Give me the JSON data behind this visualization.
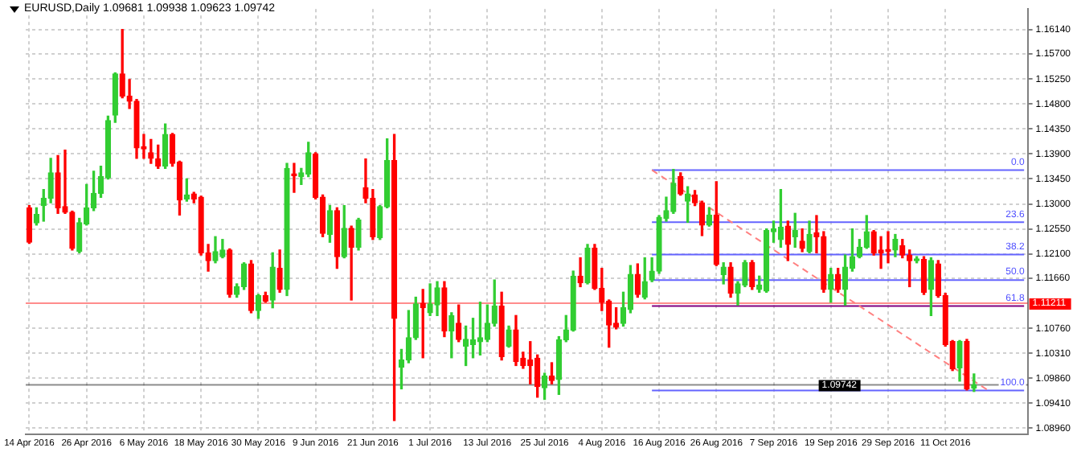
{
  "chart_data": {
    "type": "candlestick",
    "title": "EURUSD,Daily  1.09681 1.09938 1.09623 1.09742",
    "categories": [
      "14 Apr 2016",
      null,
      null,
      null,
      null,
      null,
      null,
      null,
      "26 Apr 2016",
      null,
      null,
      null,
      null,
      null,
      null,
      null,
      "6 May 2016",
      null,
      null,
      null,
      null,
      null,
      null,
      null,
      "18 May 2016",
      null,
      null,
      null,
      null,
      null,
      null,
      null,
      "30 May 2016",
      null,
      null,
      null,
      null,
      null,
      null,
      null,
      "9 Jun 2016",
      null,
      null,
      null,
      null,
      null,
      null,
      null,
      "21 Jun 2016",
      null,
      null,
      null,
      null,
      null,
      null,
      null,
      "1 Jul 2016",
      null,
      null,
      null,
      null,
      null,
      null,
      null,
      "13 Jul 2016",
      null,
      null,
      null,
      null,
      null,
      null,
      null,
      "25 Jul 2016",
      null,
      null,
      null,
      null,
      null,
      null,
      null,
      "4 Aug 2016",
      null,
      null,
      null,
      null,
      null,
      null,
      null,
      "16 Aug 2016",
      null,
      null,
      null,
      null,
      null,
      null,
      null,
      "26 Aug 2016",
      null,
      null,
      null,
      null,
      null,
      null,
      null,
      "7 Sep 2016",
      null,
      null,
      null,
      null,
      null,
      null,
      null,
      "19 Sep 2016",
      null,
      null,
      null,
      null,
      null,
      null,
      null,
      "29 Sep 2016",
      null,
      null,
      null,
      null,
      null,
      null,
      null,
      "11 Oct 2016",
      null,
      null,
      null,
      null,
      null,
      null,
      null,
      null,
      null,
      null,
      null
    ],
    "ohlc": [
      [
        1.1293,
        1.1297,
        1.1229,
        1.1231
      ],
      [
        1.1266,
        1.1293,
        1.1262,
        1.1281
      ],
      [
        1.1297,
        1.1326,
        1.1269,
        1.131
      ],
      [
        1.131,
        1.1382,
        1.1302,
        1.1356
      ],
      [
        1.1356,
        1.1387,
        1.1283,
        1.1293
      ],
      [
        1.1295,
        1.1397,
        1.1283,
        1.1285
      ],
      [
        1.1285,
        1.1287,
        1.1217,
        1.122
      ],
      [
        1.1215,
        1.1274,
        1.1212,
        1.1266
      ],
      [
        1.1264,
        1.1335,
        1.1262,
        1.1293
      ],
      [
        1.1293,
        1.1359,
        1.1288,
        1.1319
      ],
      [
        1.1319,
        1.1368,
        1.1312,
        1.1349
      ],
      [
        1.1347,
        1.1458,
        1.1345,
        1.145
      ],
      [
        1.146,
        1.1536,
        1.1447,
        1.1534
      ],
      [
        1.1534,
        1.1614,
        1.1491,
        1.1494
      ],
      [
        1.1494,
        1.1524,
        1.1472,
        1.1485
      ],
      [
        1.1485,
        1.1488,
        1.1382,
        1.1401
      ],
      [
        1.1403,
        1.1425,
        1.1382,
        1.1399
      ],
      [
        1.1392,
        1.1416,
        1.1373,
        1.1382
      ],
      [
        1.1381,
        1.1406,
        1.1364,
        1.1368
      ],
      [
        1.1368,
        1.1444,
        1.1364,
        1.1425
      ],
      [
        1.1425,
        1.1427,
        1.1368,
        1.1373
      ],
      [
        1.1375,
        1.1377,
        1.128,
        1.1307
      ],
      [
        1.1309,
        1.1345,
        1.1305,
        1.1316
      ],
      [
        1.1318,
        1.1321,
        1.1302,
        1.1309
      ],
      [
        1.1312,
        1.1314,
        1.1208,
        1.1212
      ],
      [
        1.1212,
        1.1227,
        1.1179,
        1.1198
      ],
      [
        1.1198,
        1.1241,
        1.1194,
        1.1214
      ],
      [
        1.1205,
        1.1236,
        1.1203,
        1.1217
      ],
      [
        1.1217,
        1.1219,
        1.1132,
        1.1137
      ],
      [
        1.1137,
        1.1156,
        1.1132,
        1.1151
      ],
      [
        1.1151,
        1.1194,
        1.1146,
        1.1192
      ],
      [
        1.1192,
        1.1198,
        1.1104,
        1.1108
      ],
      [
        1.1108,
        1.1137,
        1.1094,
        1.1135
      ],
      [
        1.1135,
        1.1141,
        1.1123,
        1.1125
      ],
      [
        1.1127,
        1.1212,
        1.1113,
        1.1186
      ],
      [
        1.1184,
        1.1217,
        1.1141,
        1.1146
      ],
      [
        1.1146,
        1.1373,
        1.1135,
        1.1364
      ],
      [
        1.1354,
        1.1373,
        1.1321,
        1.1351
      ],
      [
        1.1349,
        1.1364,
        1.1335,
        1.1356
      ],
      [
        1.1354,
        1.1411,
        1.1349,
        1.1392
      ],
      [
        1.139,
        1.1392,
        1.1309,
        1.1312
      ],
      [
        1.1312,
        1.1316,
        1.1241,
        1.1247
      ],
      [
        1.1245,
        1.1297,
        1.1231,
        1.1288
      ],
      [
        1.1288,
        1.1293,
        1.1184,
        1.1205
      ],
      [
        1.1205,
        1.1297,
        1.1203,
        1.1256
      ],
      [
        1.1256,
        1.126,
        1.1127,
        1.1222
      ],
      [
        1.1222,
        1.1274,
        1.1217,
        1.1271
      ],
      [
        1.1329,
        1.1381,
        1.1302,
        1.131
      ],
      [
        1.131,
        1.1326,
        1.1236,
        1.1241
      ],
      [
        1.1239,
        1.1297,
        1.1236,
        1.1295
      ],
      [
        1.1295,
        1.1417,
        1.1293,
        1.1378
      ],
      [
        1.1378,
        1.1425,
        1.091,
        1.1094
      ],
      [
        1.1006,
        1.1038,
        1.0967,
        1.1019
      ],
      [
        1.1019,
        1.1108,
        1.1014,
        1.1059
      ],
      [
        1.1059,
        1.1132,
        1.1056,
        1.112
      ],
      [
        1.1121,
        1.1146,
        1.1023,
        1.1113
      ],
      [
        1.1104,
        1.1156,
        1.1099,
        1.112
      ],
      [
        1.1118,
        1.116,
        1.1099,
        1.1149
      ],
      [
        1.1149,
        1.116,
        1.1061,
        1.1071
      ],
      [
        1.1071,
        1.1104,
        1.1023,
        1.1099
      ],
      [
        1.1085,
        1.1118,
        1.1052,
        1.1056
      ],
      [
        1.1044,
        1.108,
        1.1009,
        1.1056
      ],
      [
        1.1047,
        1.1094,
        1.1023,
        1.1055
      ],
      [
        1.1052,
        1.1123,
        1.1028,
        1.1059
      ],
      [
        1.1056,
        1.1118,
        1.1052,
        1.1085
      ],
      [
        1.1085,
        1.1163,
        1.108,
        1.1116
      ],
      [
        1.1116,
        1.1141,
        1.1019,
        1.1025
      ],
      [
        1.1044,
        1.108,
        1.1042,
        1.1073
      ],
      [
        1.1073,
        1.1099,
        1.1009,
        1.1016
      ],
      [
        1.1022,
        1.1033,
        1.1004,
        1.1009
      ],
      [
        1.1019,
        1.1052,
        1.0976,
        1.1009
      ],
      [
        1.1022,
        1.1028,
        1.0952,
        1.0971
      ],
      [
        1.0969,
        1.0995,
        1.0948,
        1.099
      ],
      [
        1.099,
        1.1014,
        1.0976,
        1.0982
      ],
      [
        1.0984,
        1.1061,
        1.0957,
        1.1055
      ],
      [
        1.1055,
        1.1099,
        1.1052,
        1.1073
      ],
      [
        1.1073,
        1.1179,
        1.1071,
        1.117
      ],
      [
        1.117,
        1.1203,
        1.1151,
        1.1158
      ],
      [
        1.1158,
        1.1227,
        1.1156,
        1.122
      ],
      [
        1.122,
        1.1227,
        1.1146,
        1.1148
      ],
      [
        1.1148,
        1.1184,
        1.1108,
        1.1123
      ],
      [
        1.1125,
        1.1127,
        1.1042,
        1.1082
      ],
      [
        1.1085,
        1.1113,
        1.1075,
        1.1078
      ],
      [
        1.1085,
        1.1141,
        1.108,
        1.1113
      ],
      [
        1.111,
        1.1189,
        1.1104,
        1.1173
      ],
      [
        1.1173,
        1.1192,
        1.1132,
        1.1137
      ],
      [
        1.1132,
        1.1203,
        1.1129,
        1.116
      ],
      [
        1.1163,
        1.1203,
        1.116,
        1.1179
      ],
      [
        1.1179,
        1.1279,
        1.1175,
        1.1276
      ],
      [
        1.1274,
        1.1312,
        1.1269,
        1.1288
      ],
      [
        1.1286,
        1.1362,
        1.1283,
        1.1337
      ],
      [
        1.1349,
        1.1356,
        1.1316,
        1.1318
      ],
      [
        1.1305,
        1.1331,
        1.1267,
        1.1318
      ],
      [
        1.1316,
        1.1324,
        1.1297,
        1.1302
      ],
      [
        1.1302,
        1.1305,
        1.1243,
        1.1262
      ],
      [
        1.1262,
        1.1293,
        1.126,
        1.128
      ],
      [
        1.128,
        1.134,
        1.1189,
        1.1191
      ],
      [
        1.1173,
        1.1194,
        1.1156,
        1.1186
      ],
      [
        1.1186,
        1.1194,
        1.1132,
        1.1139
      ],
      [
        1.1139,
        1.116,
        1.1118,
        1.1156
      ],
      [
        1.1154,
        1.1198,
        1.1151,
        1.1194
      ],
      [
        1.1194,
        1.1198,
        1.1146,
        1.1151
      ],
      [
        1.1146,
        1.117,
        1.1141,
        1.1154
      ],
      [
        1.1143,
        1.1255,
        1.1141,
        1.1252
      ],
      [
        1.125,
        1.1269,
        1.1231,
        1.1255
      ],
      [
        1.1236,
        1.1326,
        1.1222,
        1.1258
      ],
      [
        1.126,
        1.1269,
        1.1198,
        1.1227
      ],
      [
        1.1241,
        1.1283,
        1.1222,
        1.1252
      ],
      [
        1.1233,
        1.1255,
        1.1214,
        1.122
      ],
      [
        1.1214,
        1.1269,
        1.1212,
        1.1245
      ],
      [
        1.1248,
        1.1279,
        1.1212,
        1.1241
      ],
      [
        1.1241,
        1.125,
        1.1141,
        1.1146
      ],
      [
        1.1146,
        1.1184,
        1.1123,
        1.1173
      ],
      [
        1.1173,
        1.1184,
        1.1141,
        1.1146
      ],
      [
        1.1146,
        1.1208,
        1.1118,
        1.1186
      ],
      [
        1.1184,
        1.1255,
        1.1179,
        1.1205
      ],
      [
        1.1205,
        1.1236,
        1.1203,
        1.1222
      ],
      [
        1.1222,
        1.1279,
        1.122,
        1.125
      ],
      [
        1.125,
        1.1252,
        1.1208,
        1.1212
      ],
      [
        1.1217,
        1.1241,
        1.1184,
        1.1212
      ],
      [
        1.1217,
        1.125,
        1.1194,
        1.1215
      ],
      [
        1.1217,
        1.1245,
        1.1205,
        1.1236
      ],
      [
        1.1225,
        1.1236,
        1.1203,
        1.1208
      ],
      [
        1.1208,
        1.1217,
        1.1151,
        1.1198
      ],
      [
        1.1198,
        1.1205,
        1.1194,
        1.1201
      ],
      [
        1.12,
        1.1205,
        1.1137,
        1.1141
      ],
      [
        1.1146,
        1.1203,
        1.1099,
        1.1198
      ],
      [
        1.1192,
        1.1198,
        1.1132,
        1.1135
      ],
      [
        1.1135,
        1.1139,
        1.1044,
        1.1047
      ],
      [
        1.1052,
        1.1054,
        1.1,
        1.1003
      ],
      [
        1.1005,
        1.1054,
        1.0981,
        1.1052
      ],
      [
        1.1052,
        1.1056,
        1.0965,
        1.0967
      ],
      [
        1.09681,
        1.09938,
        1.09623,
        1.09742
      ],
      null,
      null,
      null,
      null,
      null,
      null,
      null
    ],
    "colors": [
      "#ff0000",
      "#32cd32",
      "#32cd32",
      "#32cd32",
      "#ff0000",
      "#ff0000",
      "#ff0000",
      "#32cd32",
      "#32cd32",
      "#32cd32",
      "#32cd32",
      "#32cd32",
      "#32cd32",
      "#ff0000",
      "#ff0000",
      "#ff0000",
      "#ff0000",
      "#ff0000",
      "#ff0000",
      "#32cd32",
      "#ff0000",
      "#ff0000",
      "#32cd32",
      "#ff0000",
      "#ff0000",
      "#ff0000",
      "#32cd32",
      "#32cd32",
      "#ff0000",
      "#32cd32",
      "#32cd32",
      "#ff0000",
      "#32cd32",
      "#ff0000",
      "#32cd32",
      "#ff0000",
      "#32cd32",
      "#ff0000",
      "#32cd32",
      "#32cd32",
      "#ff0000",
      "#ff0000",
      "#32cd32",
      "#ff0000",
      "#32cd32",
      "#ff0000",
      "#32cd32",
      "#ff0000",
      "#ff0000",
      "#32cd32",
      "#32cd32",
      "#ff0000",
      "#32cd32",
      "#32cd32",
      "#32cd32",
      "#ff0000",
      "#32cd32",
      "#32cd32",
      "#ff0000",
      "#32cd32",
      "#ff0000",
      "#32cd32",
      "#32cd32",
      "#32cd32",
      "#32cd32",
      "#32cd32",
      "#ff0000",
      "#32cd32",
      "#ff0000",
      "#ff0000",
      "#ff0000",
      "#ff0000",
      "#32cd32",
      "#ff0000",
      "#32cd32",
      "#32cd32",
      "#32cd32",
      "#ff0000",
      "#32cd32",
      "#ff0000",
      "#ff0000",
      "#ff0000",
      "#ff0000",
      "#32cd32",
      "#32cd32",
      "#ff0000",
      "#32cd32",
      "#32cd32",
      "#32cd32",
      "#32cd32",
      "#32cd32",
      "#ff0000",
      "#32cd32",
      "#ff0000",
      "#ff0000",
      "#32cd32",
      "#ff0000",
      "#32cd32",
      "#ff0000",
      "#32cd32",
      "#32cd32",
      "#ff0000",
      "#32cd32",
      "#32cd32",
      "#32cd32",
      "#32cd32",
      "#ff0000",
      "#32cd32",
      "#ff0000",
      "#32cd32",
      "#ff0000",
      "#ff0000",
      "#32cd32",
      "#ff0000",
      "#32cd32",
      "#32cd32",
      "#32cd32",
      "#32cd32",
      "#ff0000",
      "#ff0000",
      "#ff0000",
      "#32cd32",
      "#ff0000",
      "#ff0000",
      "#32cd32",
      "#ff0000",
      "#32cd32",
      "#ff0000",
      "#ff0000",
      "#ff0000",
      "#32cd32",
      "#ff0000",
      "#32cd32",
      null,
      null,
      null,
      null,
      null,
      null,
      null
    ],
    "series": [
      {
        "type": "line",
        "color": "#ff8080",
        "line_style": "dashed",
        "values": [
          null,
          null,
          null,
          null,
          null,
          null,
          null,
          null,
          null,
          null,
          null,
          null,
          null,
          null,
          null,
          null,
          null,
          null,
          null,
          null,
          null,
          null,
          null,
          null,
          null,
          null,
          null,
          null,
          null,
          null,
          null,
          null,
          null,
          null,
          null,
          null,
          null,
          null,
          null,
          null,
          null,
          null,
          null,
          null,
          null,
          null,
          null,
          null,
          null,
          null,
          null,
          null,
          null,
          null,
          null,
          null,
          null,
          null,
          null,
          null,
          null,
          null,
          null,
          null,
          null,
          null,
          null,
          null,
          null,
          null,
          null,
          null,
          null,
          null,
          null,
          null,
          null,
          null,
          null,
          null,
          null,
          null,
          null,
          null,
          null,
          null,
          null,
          1.1361,
          null,
          null,
          null,
          null,
          null,
          null,
          null,
          null,
          null,
          null,
          null,
          null,
          null,
          null,
          null,
          null,
          null,
          null,
          null,
          null,
          null,
          null,
          null,
          null,
          null,
          null,
          null,
          null,
          null,
          null,
          null,
          null,
          null,
          null,
          null,
          null,
          null,
          null,
          null,
          null,
          null,
          null,
          null,
          null,
          null,
          null,
          1.0964,
          null,
          null,
          null,
          null,
          null
        ]
      },
      {
        "type": "line",
        "color": "#6464ff",
        "values": [
          null,
          null,
          null,
          null,
          null,
          null,
          null,
          null,
          null,
          null,
          null,
          null,
          null,
          null,
          null,
          null,
          null,
          null,
          null,
          null,
          null,
          null,
          null,
          null,
          null,
          null,
          null,
          null,
          null,
          null,
          null,
          null,
          null,
          null,
          null,
          null,
          null,
          null,
          null,
          null,
          null,
          null,
          null,
          null,
          null,
          null,
          null,
          null,
          null,
          null,
          null,
          null,
          null,
          null,
          null,
          null,
          null,
          null,
          null,
          null,
          null,
          null,
          null,
          null,
          null,
          null,
          null,
          null,
          null,
          null,
          null,
          null,
          null,
          null,
          null,
          null,
          null,
          null,
          null,
          null,
          null,
          null,
          null,
          null,
          null,
          null,
          null,
          1.1361,
          null,
          null,
          null,
          null,
          null,
          null,
          null,
          null,
          null,
          null,
          null,
          null,
          null,
          null,
          null,
          null,
          null,
          null,
          null,
          null,
          null,
          null,
          null,
          null,
          null,
          null,
          null,
          null,
          null,
          null,
          null,
          null,
          null,
          null,
          null,
          null,
          null,
          null,
          null,
          null,
          null,
          null,
          null,
          null,
          null,
          null,
          null,
          null,
          null,
          null,
          null,
          1.1361
        ]
      },
      {
        "type": "line",
        "color": "#6464ff",
        "values": [
          null,
          null,
          null,
          null,
          null,
          null,
          null,
          null,
          null,
          null,
          null,
          null,
          null,
          null,
          null,
          null,
          null,
          null,
          null,
          null,
          null,
          null,
          null,
          null,
          null,
          null,
          null,
          null,
          null,
          null,
          null,
          null,
          null,
          null,
          null,
          null,
          null,
          null,
          null,
          null,
          null,
          null,
          null,
          null,
          null,
          null,
          null,
          null,
          null,
          null,
          null,
          null,
          null,
          null,
          null,
          null,
          null,
          null,
          null,
          null,
          null,
          null,
          null,
          null,
          null,
          null,
          null,
          null,
          null,
          null,
          null,
          null,
          null,
          null,
          null,
          null,
          null,
          null,
          null,
          null,
          null,
          null,
          null,
          null,
          null,
          null,
          null,
          1.1267,
          null,
          null,
          null,
          null,
          null,
          null,
          null,
          null,
          null,
          null,
          null,
          null,
          null,
          null,
          null,
          null,
          null,
          null,
          null,
          null,
          null,
          null,
          null,
          null,
          null,
          null,
          null,
          null,
          null,
          null,
          null,
          null,
          null,
          null,
          null,
          null,
          null,
          null,
          null,
          null,
          null,
          null,
          null,
          null,
          null,
          null,
          null,
          null,
          null,
          null,
          null,
          1.1267
        ]
      },
      {
        "type": "line",
        "color": "#6464ff",
        "values": [
          null,
          null,
          null,
          null,
          null,
          null,
          null,
          null,
          null,
          null,
          null,
          null,
          null,
          null,
          null,
          null,
          null,
          null,
          null,
          null,
          null,
          null,
          null,
          null,
          null,
          null,
          null,
          null,
          null,
          null,
          null,
          null,
          null,
          null,
          null,
          null,
          null,
          null,
          null,
          null,
          null,
          null,
          null,
          null,
          null,
          null,
          null,
          null,
          null,
          null,
          null,
          null,
          null,
          null,
          null,
          null,
          null,
          null,
          null,
          null,
          null,
          null,
          null,
          null,
          null,
          null,
          null,
          null,
          null,
          null,
          null,
          null,
          null,
          null,
          null,
          null,
          null,
          null,
          null,
          null,
          null,
          null,
          null,
          null,
          null,
          null,
          null,
          1.1209,
          null,
          null,
          null,
          null,
          null,
          null,
          null,
          null,
          null,
          null,
          null,
          null,
          null,
          null,
          null,
          null,
          null,
          null,
          null,
          null,
          null,
          null,
          null,
          null,
          null,
          null,
          null,
          null,
          null,
          null,
          null,
          null,
          null,
          null,
          null,
          null,
          null,
          null,
          null,
          null,
          null,
          null,
          null,
          null,
          null,
          null,
          null,
          null,
          null,
          null,
          null,
          1.1209
        ]
      },
      {
        "type": "line",
        "color": "#6464ff",
        "values": [
          null,
          null,
          null,
          null,
          null,
          null,
          null,
          null,
          null,
          null,
          null,
          null,
          null,
          null,
          null,
          null,
          null,
          null,
          null,
          null,
          null,
          null,
          null,
          null,
          null,
          null,
          null,
          null,
          null,
          null,
          null,
          null,
          null,
          null,
          null,
          null,
          null,
          null,
          null,
          null,
          null,
          null,
          null,
          null,
          null,
          null,
          null,
          null,
          null,
          null,
          null,
          null,
          null,
          null,
          null,
          null,
          null,
          null,
          null,
          null,
          null,
          null,
          null,
          null,
          null,
          null,
          null,
          null,
          null,
          null,
          null,
          null,
          null,
          null,
          null,
          null,
          null,
          null,
          null,
          null,
          null,
          null,
          null,
          null,
          null,
          null,
          null,
          1.1163,
          null,
          null,
          null,
          null,
          null,
          null,
          null,
          null,
          null,
          null,
          null,
          null,
          null,
          null,
          null,
          null,
          null,
          null,
          null,
          null,
          null,
          null,
          null,
          null,
          null,
          null,
          null,
          null,
          null,
          null,
          null,
          null,
          null,
          null,
          null,
          null,
          null,
          null,
          null,
          null,
          null,
          null,
          null,
          null,
          null,
          null,
          null,
          null,
          null,
          null,
          null,
          1.1163
        ]
      },
      {
        "type": "line",
        "color": "#800080",
        "values": [
          null,
          null,
          null,
          null,
          null,
          null,
          null,
          null,
          null,
          null,
          null,
          null,
          null,
          null,
          null,
          null,
          null,
          null,
          null,
          null,
          null,
          null,
          null,
          null,
          null,
          null,
          null,
          null,
          null,
          null,
          null,
          null,
          null,
          null,
          null,
          null,
          null,
          null,
          null,
          null,
          null,
          null,
          null,
          null,
          null,
          null,
          null,
          null,
          null,
          null,
          null,
          null,
          null,
          null,
          null,
          null,
          null,
          null,
          null,
          null,
          null,
          null,
          null,
          null,
          null,
          null,
          null,
          null,
          null,
          null,
          null,
          null,
          null,
          null,
          null,
          null,
          null,
          null,
          null,
          null,
          null,
          null,
          null,
          null,
          null,
          null,
          null,
          1.1116,
          null,
          null,
          null,
          null,
          null,
          null,
          null,
          null,
          null,
          null,
          null,
          null,
          null,
          null,
          null,
          null,
          null,
          null,
          null,
          null,
          null,
          null,
          null,
          null,
          null,
          null,
          null,
          null,
          null,
          null,
          null,
          null,
          null,
          null,
          null,
          null,
          null,
          null,
          null,
          null,
          null,
          null,
          null,
          null,
          null,
          null,
          null,
          null,
          null,
          null,
          null,
          1.1116
        ]
      },
      {
        "type": "line",
        "color": "#6464ff",
        "values": [
          null,
          null,
          null,
          null,
          null,
          null,
          null,
          null,
          null,
          null,
          null,
          null,
          null,
          null,
          null,
          null,
          null,
          null,
          null,
          null,
          null,
          null,
          null,
          null,
          null,
          null,
          null,
          null,
          null,
          null,
          null,
          null,
          null,
          null,
          null,
          null,
          null,
          null,
          null,
          null,
          null,
          null,
          null,
          null,
          null,
          null,
          null,
          null,
          null,
          null,
          null,
          null,
          null,
          null,
          null,
          null,
          null,
          null,
          null,
          null,
          null,
          null,
          null,
          null,
          null,
          null,
          null,
          null,
          null,
          null,
          null,
          null,
          null,
          null,
          null,
          null,
          null,
          null,
          null,
          null,
          null,
          null,
          null,
          null,
          null,
          null,
          null,
          1.0964,
          null,
          null,
          null,
          null,
          null,
          null,
          null,
          null,
          null,
          null,
          null,
          null,
          null,
          null,
          null,
          null,
          null,
          null,
          null,
          null,
          null,
          null,
          null,
          null,
          null,
          null,
          null,
          null,
          null,
          null,
          null,
          null,
          null,
          null,
          null,
          null,
          null,
          null,
          null,
          null,
          null,
          null,
          null,
          null,
          null,
          null,
          null,
          null,
          null,
          null,
          null,
          1.0964
        ]
      }
    ],
    "annotations": [
      {
        "text": "0.0",
        "y": 1.1361
      },
      {
        "text": "23.6",
        "y": 1.1267
      },
      {
        "text": "38.2",
        "y": 1.1209
      },
      {
        "text": "50.0",
        "y": 1.1163
      },
      {
        "text": "61.8",
        "y": 1.1116
      },
      {
        "text": "100.0",
        "y": 1.0964
      }
    ],
    "ref_lines": [
      {
        "axis": "y",
        "value": 1.11211,
        "label": "1.11211",
        "color": "#ff0000"
      },
      {
        "axis": "y",
        "value": 1.09742,
        "label": "1.09742",
        "color": "#000000"
      }
    ],
    "ylim": [
      1.0885,
      1.1651
    ],
    "yticks": [
      {
        "value": 1.1614,
        "label": "1.16140"
      },
      {
        "value": 1.157,
        "label": "1.15700"
      },
      {
        "value": 1.1525,
        "label": "1.15250"
      },
      {
        "value": 1.148,
        "label": "1.14800"
      },
      {
        "value": 1.1435,
        "label": "1.14350"
      },
      {
        "value": 1.139,
        "label": "1.13900"
      },
      {
        "value": 1.1345,
        "label": "1.13450"
      },
      {
        "value": 1.13,
        "label": "1.13000"
      },
      {
        "value": 1.1255,
        "label": "1.12550"
      },
      {
        "value": 1.121,
        "label": "1.12100"
      },
      {
        "value": 1.1166,
        "label": "1.11660"
      },
      {
        "value": 1.1076,
        "label": "1.10760"
      },
      {
        "value": 1.1031,
        "label": "1.10310"
      },
      {
        "value": 1.0986,
        "label": "1.09860"
      },
      {
        "value": 1.0941,
        "label": "1.09410"
      },
      {
        "value": 1.0896,
        "label": "1.08960"
      }
    ],
    "grid": true
  }
}
